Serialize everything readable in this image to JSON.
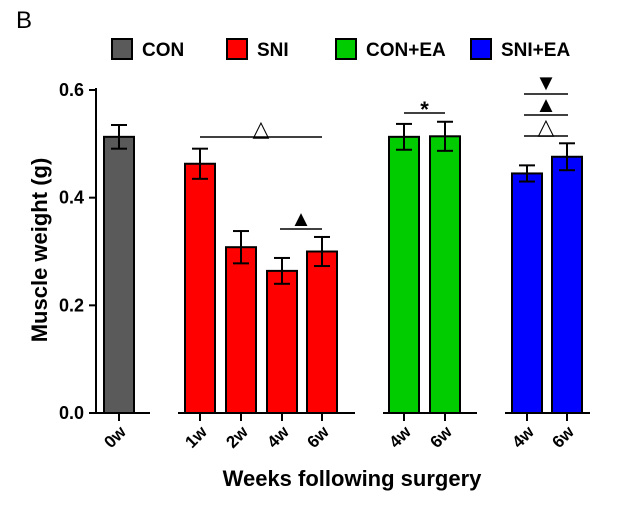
{
  "panel_label": "B",
  "colors": {
    "CON": "#5a5a5a",
    "SNI": "#ff0000",
    "CON+EA": "#00cc00",
    "SNI+EA": "#0000ff"
  },
  "chart_data": {
    "type": "bar",
    "title": "",
    "xlabel": "Weeks following surgery",
    "ylabel": "Muscle weight (g)",
    "ylim": [
      0,
      0.6
    ],
    "yticks": [
      "0.0",
      "0.2",
      "0.4",
      "0.6"
    ],
    "legend_position": "top",
    "legend": [
      "CON",
      "SNI",
      "CON+EA",
      "SNI+EA"
    ],
    "groups": [
      {
        "name": "CON",
        "bars": [
          {
            "label": "0w",
            "value": 0.513,
            "error": 0.022
          }
        ]
      },
      {
        "name": "SNI",
        "bars": [
          {
            "label": "1w",
            "value": 0.463,
            "error": 0.028
          },
          {
            "label": "2w",
            "value": 0.308,
            "error": 0.03
          },
          {
            "label": "4w",
            "value": 0.264,
            "error": 0.024
          },
          {
            "label": "6w",
            "value": 0.3,
            "error": 0.027
          }
        ]
      },
      {
        "name": "CON+EA",
        "bars": [
          {
            "label": "4w",
            "value": 0.513,
            "error": 0.024
          },
          {
            "label": "6w",
            "value": 0.514,
            "error": 0.027
          }
        ]
      },
      {
        "name": "SNI+EA",
        "bars": [
          {
            "label": "4w",
            "value": 0.445,
            "error": 0.015
          },
          {
            "label": "6w",
            "value": 0.476,
            "error": 0.025
          }
        ]
      }
    ],
    "annotations": [
      {
        "symbol": "△",
        "note": "over SNI 1w–6w"
      },
      {
        "symbol": "▲",
        "note": "over SNI 4w–6w"
      },
      {
        "symbol": "*",
        "note": "over CON+EA 4w–6w"
      },
      {
        "symbol": "▼",
        "note": "over SNI+EA 4w–6w"
      },
      {
        "symbol": "▲",
        "note": "over SNI+EA 4w–6w"
      },
      {
        "symbol": "△",
        "note": "over SNI+EA 4w–6w"
      }
    ]
  }
}
